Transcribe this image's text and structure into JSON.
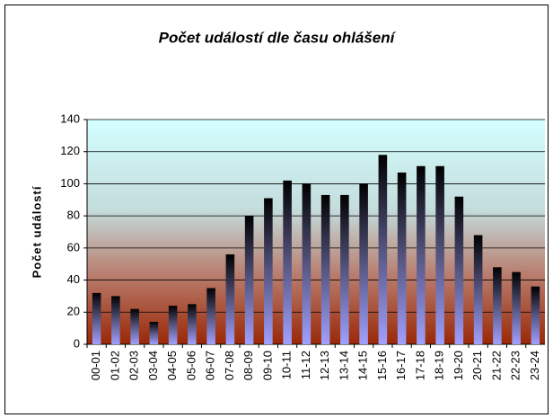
{
  "chart_data": {
    "type": "bar",
    "title": "Počet událostí dle času ohlášení",
    "y_label": "Počet událostí",
    "categories": [
      "00-01",
      "01-02",
      "02-03",
      "03-04",
      "04-05",
      "05-06",
      "06-07",
      "07-08",
      "08-09",
      "09-10",
      "10-11",
      "11-12",
      "12-13",
      "13-14",
      "14-15",
      "15-16",
      "16-17",
      "17-18",
      "18-19",
      "19-20",
      "20-21",
      "21-22",
      "22-23",
      "23-24"
    ],
    "values": [
      32,
      30,
      22,
      14,
      24,
      25,
      35,
      56,
      80,
      91,
      102,
      100,
      93,
      93,
      100,
      118,
      107,
      111,
      111,
      92,
      68,
      48,
      45,
      36
    ],
    "ylim": [
      0,
      140
    ],
    "yticks": [
      0,
      20,
      40,
      60,
      80,
      100,
      120,
      140
    ],
    "grid": true
  }
}
